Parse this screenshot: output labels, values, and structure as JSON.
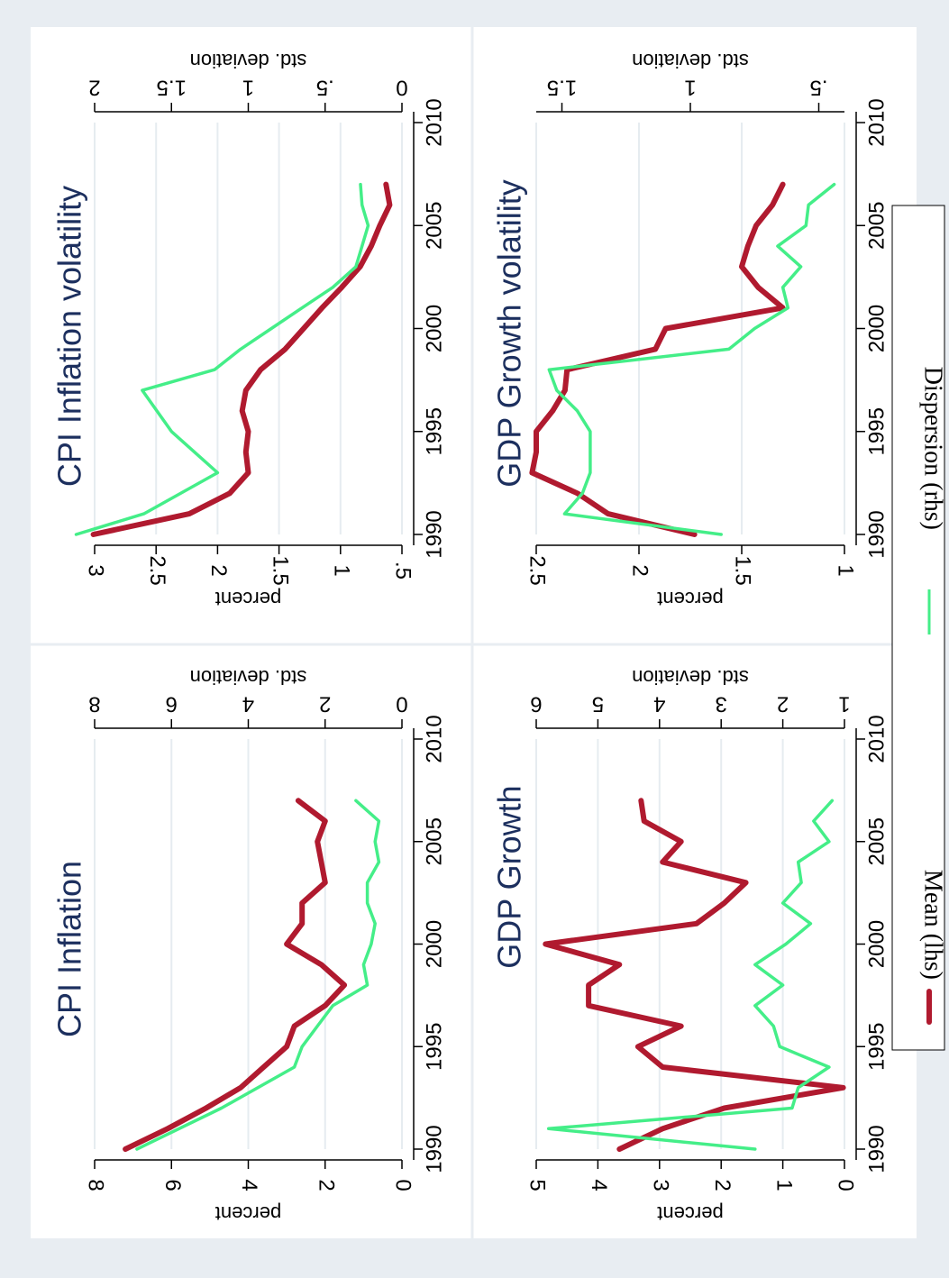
{
  "colors": {
    "mean": "#b01a2f",
    "dispersion": "#44ee88",
    "title": "#1c2f5e",
    "background": "#e8edf2",
    "panel": "#ffffff",
    "grid": "#e6ecf0"
  },
  "legend": {
    "mean_label": "Mean (lhs)",
    "dispersion_label": "Dispersion (rhs)"
  },
  "chart_data": [
    {
      "type": "line",
      "title": "CPI Inflation",
      "ylabel": "percent",
      "y2label": "std. deviation",
      "xlim": [
        1990,
        2010
      ],
      "xticks": [
        "1990",
        "1995",
        "2000",
        "2005",
        "2010"
      ],
      "ylim": [
        0,
        8
      ],
      "yticks": [
        "0",
        "2",
        "4",
        "6",
        "8"
      ],
      "y2lim": [
        0,
        8
      ],
      "y2ticks": [
        "0",
        "2",
        "4",
        "6",
        "8"
      ],
      "x": [
        1990,
        1991,
        1992,
        1993,
        1994,
        1995,
        1996,
        1997,
        1998,
        1999,
        2000,
        2001,
        2002,
        2003,
        2004,
        2005,
        2006,
        2007
      ],
      "series": [
        {
          "name": "Mean (lhs)",
          "axis": "left",
          "values": [
            7.2,
            6.1,
            5.1,
            4.2,
            3.6,
            3.0,
            2.8,
            2.0,
            1.5,
            2.1,
            3.0,
            2.6,
            2.6,
            2.0,
            2.1,
            2.2,
            2.0,
            2.7
          ]
        },
        {
          "name": "Dispersion (rhs)",
          "axis": "right",
          "values": [
            6.9,
            null,
            4.7,
            null,
            2.8,
            2.6,
            2.2,
            1.8,
            0.9,
            1.0,
            0.8,
            0.7,
            0.9,
            0.9,
            0.6,
            0.7,
            0.6,
            1.2
          ]
        }
      ]
    },
    {
      "type": "line",
      "title": "CPI Inflation volatility",
      "ylabel": "percent",
      "y2label": "std. deviation",
      "xlim": [
        1990,
        2010
      ],
      "xticks": [
        "1990",
        "1995",
        "2000",
        "2005",
        "2010"
      ],
      "ylim": [
        0.5,
        3
      ],
      "yticks": [
        ".5",
        "1",
        "1.5",
        "2",
        "2.5",
        "3"
      ],
      "y2lim": [
        0,
        2
      ],
      "y2ticks": [
        "0",
        ".5",
        "1",
        "1.5",
        "2"
      ],
      "x": [
        1990,
        1991,
        1992,
        1993,
        1994,
        1995,
        1996,
        1997,
        1998,
        1999,
        2000,
        2001,
        2002,
        2003,
        2004,
        2005,
        2006,
        2007
      ],
      "series": [
        {
          "name": "Mean (lhs)",
          "axis": "left",
          "values": [
            3.01,
            2.23,
            1.9,
            1.75,
            1.77,
            1.75,
            1.8,
            1.77,
            1.65,
            1.45,
            1.3,
            1.15,
            0.99,
            0.84,
            0.75,
            0.68,
            0.6,
            0.63
          ]
        },
        {
          "name": "Dispersion (rhs)",
          "axis": "right",
          "values": [
            2.12,
            1.68,
            null,
            1.2,
            null,
            1.5,
            null,
            1.69,
            1.22,
            1.05,
            0.85,
            0.65,
            0.45,
            0.3,
            0.26,
            0.22,
            0.26,
            0.27
          ]
        }
      ]
    },
    {
      "type": "line",
      "title": "GDP Growth",
      "ylabel": "percent",
      "y2label": "std. deviation",
      "xlim": [
        1990,
        2010
      ],
      "xticks": [
        "1990",
        "1995",
        "2000",
        "2005",
        "2010"
      ],
      "ylim": [
        0,
        5
      ],
      "yticks": [
        "0",
        "1",
        "2",
        "3",
        "4",
        "5"
      ],
      "y2lim": [
        1,
        6
      ],
      "y2ticks": [
        "1",
        "2",
        "3",
        "4",
        "5",
        "6"
      ],
      "x": [
        1990,
        1991,
        1992,
        1993,
        1994,
        1995,
        1996,
        1997,
        1998,
        1999,
        2000,
        2001,
        2002,
        2003,
        2004,
        2005,
        2006,
        2007
      ],
      "series": [
        {
          "name": "Mean (lhs)",
          "axis": "left",
          "values": [
            3.65,
            2.95,
            1.95,
            0.02,
            2.95,
            3.35,
            2.65,
            4.15,
            4.15,
            3.65,
            4.85,
            2.4,
            1.95,
            1.6,
            2.95,
            2.65,
            3.25,
            3.3
          ]
        },
        {
          "name": "Dispersion (rhs)",
          "axis": "right",
          "values": [
            2.45,
            5.8,
            1.85,
            1.75,
            1.25,
            2.05,
            2.15,
            2.45,
            2.0,
            2.45,
            1.95,
            1.55,
            2.0,
            1.7,
            1.75,
            1.25,
            1.5,
            1.2
          ]
        }
      ]
    },
    {
      "type": "line",
      "title": "GDP Growth volatility",
      "ylabel": "percent",
      "y2label": "std. deviation",
      "xlim": [
        1990,
        2010
      ],
      "xticks": [
        "1990",
        "1995",
        "2000",
        "2005",
        "2010"
      ],
      "ylim": [
        1,
        2.5
      ],
      "yticks": [
        "1",
        "1.5",
        "2",
        "2.5"
      ],
      "y2lim": [
        0.4,
        1.6
      ],
      "y2ticks": [
        ".5",
        "1",
        "1.5"
      ],
      "x": [
        1990,
        1991,
        1992,
        1993,
        1994,
        1995,
        1996,
        1997,
        1998,
        1999,
        2000,
        2001,
        2002,
        2003,
        2004,
        2005,
        2006,
        2007
      ],
      "series": [
        {
          "name": "Mean (lhs)",
          "axis": "left",
          "values": [
            1.73,
            2.15,
            2.3,
            2.52,
            2.5,
            2.5,
            2.42,
            2.36,
            2.35,
            1.92,
            1.87,
            1.3,
            1.42,
            1.5,
            1.47,
            1.43,
            1.35,
            1.3
          ]
        },
        {
          "name": "Dispersion (rhs)",
          "axis": "right",
          "values": [
            0.88,
            1.49,
            1.42,
            1.39,
            1.39,
            1.39,
            1.44,
            1.52,
            1.55,
            0.85,
            0.75,
            0.62,
            0.64,
            0.57,
            0.66,
            0.55,
            0.54,
            0.44
          ]
        }
      ]
    }
  ]
}
